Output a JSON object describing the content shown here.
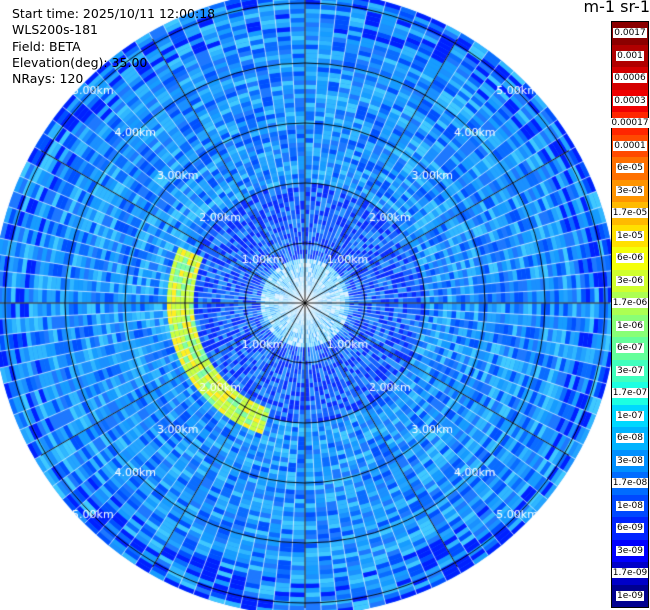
{
  "info": {
    "start_time": "Start time: 2025/10/11 12:00:18",
    "instrument": "WLS200s-181",
    "field": "Field: BETA",
    "elevation": "Elevation(deg): 35.00",
    "nrays": "NRays: 120"
  },
  "colorbar": {
    "unit_title": "m-1 sr-1",
    "labels": [
      "0.0017",
      "0.001",
      "0.0006",
      "0.0003",
      "0.00017",
      "0.0001",
      "6e-05",
      "3e-05",
      "1.7e-05",
      "1e-05",
      "6e-06",
      "3e-06",
      "1.7e-06",
      "1e-06",
      "6e-07",
      "3e-07",
      "1.7e-07",
      "1e-07",
      "6e-08",
      "3e-08",
      "1.7e-08",
      "1e-08",
      "6e-09",
      "3e-09",
      "1.7e-09",
      "1e-09"
    ],
    "colors": [
      "#8b0000",
      "#b00000",
      "#d40000",
      "#f00000",
      "#ff2600",
      "#ff4a00",
      "#ff7000",
      "#ff9400",
      "#ffba00",
      "#ffe000",
      "#f4ff0a",
      "#d0ff2e",
      "#acff52",
      "#88ff76",
      "#64ff9a",
      "#40ffbe",
      "#1cffe2",
      "#00d8ff",
      "#00b4ff",
      "#0090ff",
      "#006cff",
      "#0048ff",
      "#0024ff",
      "#0000ff",
      "#0000c8",
      "#000090"
    ]
  },
  "chart_data": {
    "type": "heatmap",
    "projection": "polar-ppi",
    "field": "BETA",
    "elevation_deg": 35.0,
    "n_rays": 120,
    "range_rings_km": [
      1,
      2,
      3,
      4,
      5
    ],
    "ring_labels": [
      "1.00km",
      "2.00km",
      "3.00km",
      "4.00km",
      "5.00km"
    ],
    "max_range_km": 5.2,
    "background_beta": "6e-08",
    "features": [
      {
        "description_value": "1.7e-06 to 1e-05",
        "range_km": [
          1.9,
          2.2
        ],
        "azimuth_deg": [
          195,
          290
        ]
      }
    ]
  }
}
